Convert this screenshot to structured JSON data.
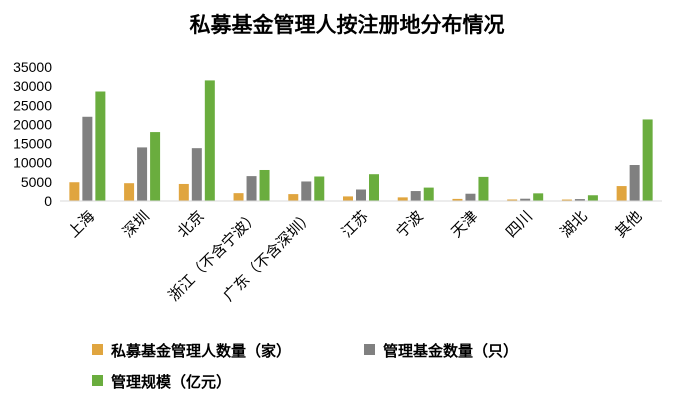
{
  "chart_data": {
    "type": "bar",
    "title": "私募基金管理人按注册地分布情况",
    "categories": [
      "上海",
      "深圳",
      "北京",
      "浙江（不含宁波）",
      "广东（不含深圳）",
      "江苏",
      "宁波",
      "天津",
      "四川",
      "湖北",
      "其他"
    ],
    "series": [
      {
        "name": "私募基金管理人数量（家）",
        "color": "#E0A53F",
        "values": [
          4900,
          4650,
          4450,
          2050,
          1800,
          1200,
          950,
          550,
          400,
          380,
          3900
        ]
      },
      {
        "name": "管理基金数量（只）",
        "color": "#808080",
        "values": [
          22000,
          14000,
          13800,
          6500,
          5100,
          3000,
          2600,
          1900,
          600,
          500,
          9400
        ]
      },
      {
        "name": "管理规模（亿元）",
        "color": "#6AAD3E",
        "values": [
          28600,
          18000,
          31500,
          8100,
          6400,
          7000,
          3500,
          6300,
          2000,
          1500,
          21300
        ]
      }
    ],
    "yticks": [
      "35000",
      "30000",
      "25000",
      "20000",
      "15000",
      "10000",
      "5000",
      "0"
    ],
    "ylim": [
      0,
      35000
    ],
    "grid": false,
    "legend_position": "bottom"
  }
}
